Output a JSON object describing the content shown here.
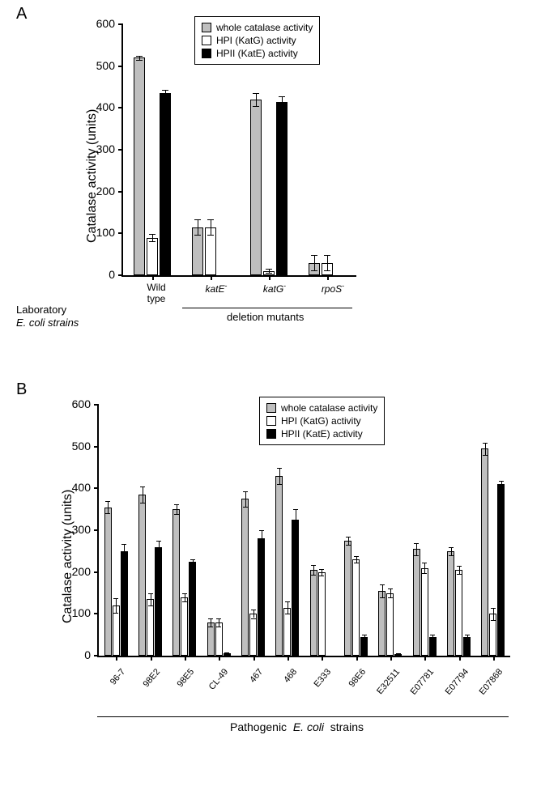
{
  "panels": {
    "A": {
      "label": "A"
    },
    "B": {
      "label": "B"
    }
  },
  "legend": {
    "items": [
      {
        "label": "whole catalase activity",
        "color": "#bfbfbf"
      },
      {
        "label": "HPI (KatG) activity",
        "color": "#ffffff"
      },
      {
        "label": "HPII (KatE) activity",
        "color": "#000000"
      }
    ]
  },
  "axis": {
    "y_title": "Catalase activity (units)",
    "ylim": [
      0,
      600
    ],
    "ytick_step": 100,
    "yticks": [
      0,
      100,
      200,
      300,
      400,
      500,
      600
    ]
  },
  "chartA": {
    "categories": [
      "Wild\ntype",
      "katE",
      "katG",
      "rpoS"
    ],
    "deletion_label": "deletion mutants",
    "strain_label_1": "Laboratory",
    "strain_label_2": "E. coli strains",
    "values": {
      "whole": [
        520,
        115,
        420,
        30
      ],
      "hpi": [
        90,
        115,
        10,
        30
      ],
      "hpii": [
        435,
        0,
        415,
        0
      ]
    },
    "err": {
      "whole": [
        5,
        18,
        15,
        18
      ],
      "hpi": [
        8,
        18,
        5,
        18
      ],
      "hpii": [
        8,
        0,
        12,
        0
      ]
    }
  },
  "chartB": {
    "categories": [
      "96-7",
      "98E2",
      "98E5",
      "CL-49",
      "467",
      "468",
      "E333",
      "98E6",
      "E32511",
      "E07781",
      "E07794",
      "E07868"
    ],
    "strain_label": "Pathogenic  E. coli  strains",
    "values": {
      "whole": [
        355,
        385,
        350,
        80,
        375,
        430,
        205,
        275,
        155,
        255,
        250,
        495
      ],
      "hpi": [
        120,
        135,
        140,
        80,
        100,
        115,
        200,
        230,
        150,
        210,
        205,
        100
      ],
      "hpii": [
        250,
        260,
        225,
        5,
        280,
        325,
        0,
        45,
        3,
        45,
        45,
        410
      ]
    },
    "err": {
      "whole": [
        15,
        20,
        12,
        10,
        18,
        20,
        12,
        10,
        15,
        15,
        10,
        15
      ],
      "hpi": [
        18,
        15,
        10,
        10,
        10,
        15,
        8,
        8,
        10,
        12,
        10,
        15
      ],
      "hpii": [
        18,
        15,
        5,
        3,
        20,
        25,
        0,
        5,
        2,
        5,
        5,
        8
      ]
    }
  },
  "colors": {
    "whole": "#bfbfbf",
    "hpi": "#ffffff",
    "hpii": "#000000",
    "background": "#ffffff",
    "axis": "#000000"
  },
  "fonts": {
    "panel_label": 20,
    "axis_title": 16,
    "tick_label": 14,
    "category_label": 12,
    "legend": 12
  }
}
